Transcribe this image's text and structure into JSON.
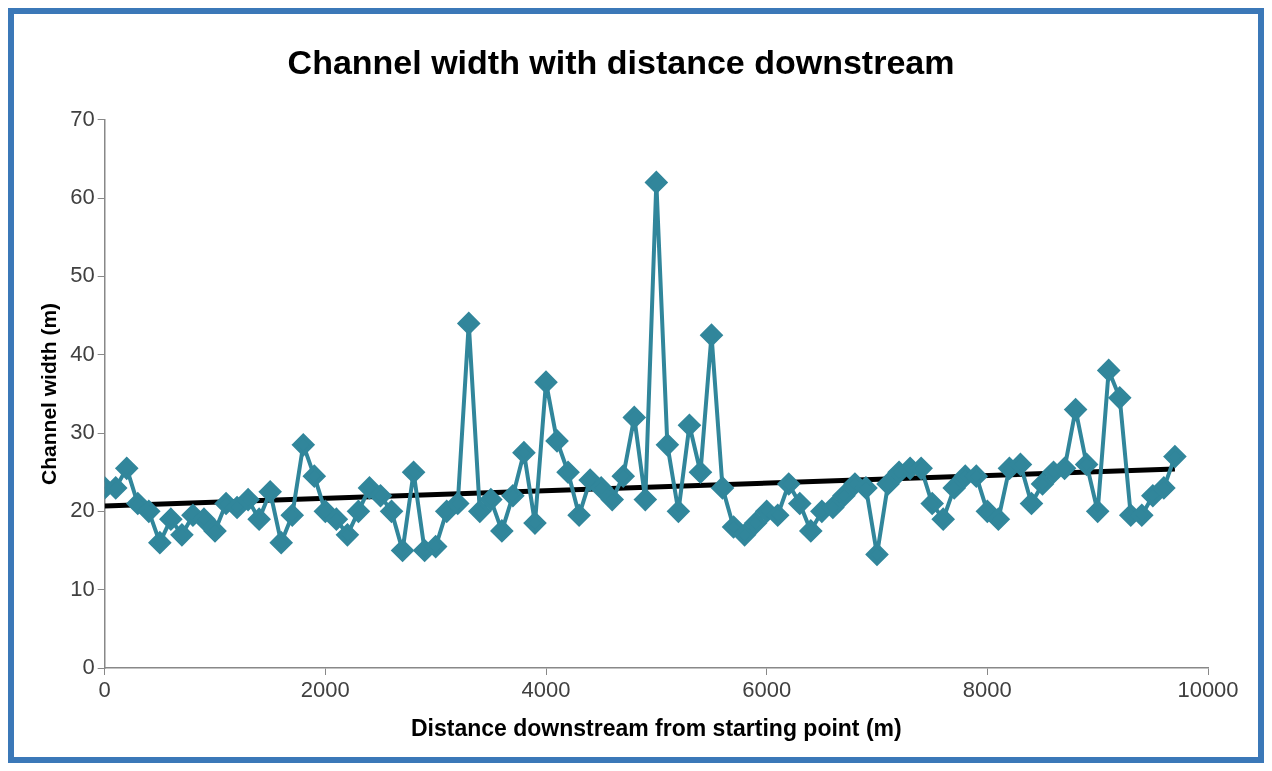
{
  "chart_data": {
    "type": "line",
    "title": "Channel width with distance downstream",
    "xlabel": "Distance downstream from starting point (m)",
    "ylabel": "Channel width (m)",
    "xlim": [
      0,
      10000
    ],
    "xticks": [
      0,
      2000,
      4000,
      6000,
      8000,
      10000
    ],
    "ylim": [
      0,
      70
    ],
    "yticks": [
      0,
      10,
      20,
      30,
      40,
      50,
      60,
      70
    ],
    "grid": false,
    "legend": false,
    "marker": "diamond",
    "series": [
      {
        "color": "#31869b",
        "x": [
          0,
          100,
          200,
          300,
          400,
          500,
          600,
          700,
          800,
          900,
          1000,
          1100,
          1200,
          1300,
          1400,
          1500,
          1600,
          1700,
          1800,
          1900,
          2000,
          2100,
          2200,
          2300,
          2400,
          2500,
          2600,
          2700,
          2800,
          2900,
          3000,
          3100,
          3200,
          3300,
          3400,
          3500,
          3600,
          3700,
          3800,
          3900,
          4000,
          4100,
          4200,
          4300,
          4400,
          4500,
          4600,
          4700,
          4800,
          4900,
          5000,
          5100,
          5200,
          5300,
          5400,
          5500,
          5600,
          5700,
          5800,
          5900,
          6000,
          6100,
          6200,
          6300,
          6400,
          6500,
          6600,
          6700,
          6800,
          6900,
          7000,
          7100,
          7200,
          7300,
          7400,
          7500,
          7600,
          7700,
          7800,
          7900,
          8000,
          8100,
          8200,
          8300,
          8400,
          8500,
          8600,
          8700,
          8800,
          8900,
          9000,
          9100,
          9200,
          9300,
          9400,
          9500,
          9600,
          9700
        ],
        "values": [
          23,
          23,
          25.5,
          21,
          20,
          16,
          19,
          17,
          19.5,
          19,
          17.5,
          21,
          20.5,
          21.5,
          19,
          22.5,
          16,
          19.5,
          28.5,
          24.5,
          20,
          19,
          17,
          20,
          23,
          22,
          20,
          15,
          25,
          15,
          15.5,
          20,
          21,
          44,
          20,
          21.5,
          17.5,
          22,
          27.5,
          18.5,
          36.5,
          29,
          25,
          19.5,
          24,
          23,
          21.5,
          24.5,
          32,
          21.5,
          62,
          28.5,
          20,
          31,
          25,
          42.5,
          23,
          18,
          17,
          18.5,
          20,
          19.5,
          23.5,
          21,
          17.5,
          20,
          20.5,
          22,
          23.5,
          23,
          14.5,
          23.5,
          25,
          25.5,
          25.5,
          21,
          19,
          23,
          24.5,
          24.5,
          20,
          19,
          25.5,
          26,
          21,
          23.5,
          25,
          25.5,
          33,
          26,
          20,
          38,
          34.5,
          19.5,
          19.5,
          22,
          23,
          27
        ]
      },
      {
        "color": "#000000",
        "marker": "none",
        "x": [
          0,
          9700
        ],
        "values": [
          20.7,
          25.4
        ]
      }
    ]
  }
}
